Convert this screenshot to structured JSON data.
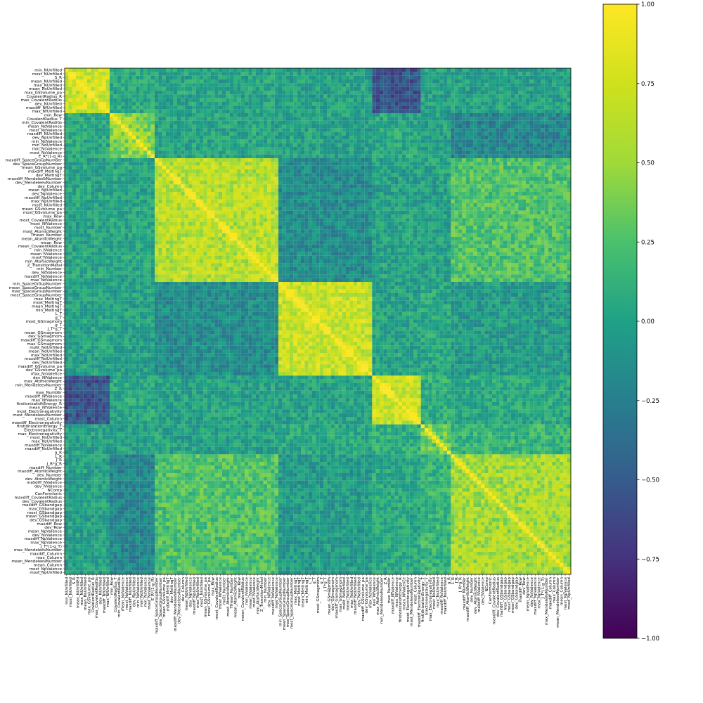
{
  "chart_data": {
    "type": "heatmap",
    "title": "",
    "xlabel": "",
    "ylabel": "",
    "colormap": "viridis",
    "vmin": -1.0,
    "vmax": 1.0,
    "colorbar": {
      "ticks": [
        1.0,
        0.75,
        0.5,
        0.25,
        0.0,
        -0.25,
        -0.5,
        -0.75,
        -1.0
      ],
      "tick_labels": [
        "1.00",
        "0.75",
        "0.50",
        "0.25",
        "0.00",
        "−0.25",
        "−0.50",
        "−0.75",
        "−1.00"
      ]
    },
    "labels": [
      "min_NUnfilled",
      "most_NUnfilled",
      "S_R",
      "mean_NUnfilled",
      "max_NUnfilled",
      "mean_NsUnfilled",
      "max_GSvolume_pa",
      "CovalentRadius_R",
      "max_CovalentRadius",
      "dev_NUnfilled",
      "maxdiff_NfUnfilled",
      "max_NfUnfilled",
      "min_Row",
      "CovalentRadius_T",
      "min_CovalentRadius",
      "mean_NdValence",
      "most_NdValence",
      "maxdiff_NUnfilled",
      "dev_NpUnfilled",
      "min_NdValence",
      "min_NdUnfilled",
      "min_NsValence",
      "most_NsValence",
      "E_R*(1-g_R)",
      "maxdiff_SpaceGroupNumber",
      "dev_SpaceGroupNumber",
      "mean_GSvolume_pa",
      "maxdiff_MeltingT",
      "dev_MeltingT",
      "maxdiff_MendeleevNumber",
      "dev_MendeleevNumber",
      "dev_Column",
      "mean_NpUnfilled",
      "dev_NpValence",
      "maxdiff_NpUnfilled",
      "max_NpUnfilled",
      "most_NUnfilled",
      "mean_GSvolume_pa",
      "most_GSvolume_pa",
      "max_Row",
      "most_CovalentRadius",
      "most_NfValence",
      "most_Number",
      "most_AtomicWeight",
      "Tmean_Number",
      "mean_AtomicWeight",
      "mean_Row",
      "mean_CovalentRadius",
      "min_NValence",
      "mean_NValence",
      "most_NValence",
      "min_AtomicWeight",
      "Z_TransitionMetal",
      "min_Number",
      "dev_NdValence",
      "maxdiff_NdValence",
      "max_NdValence",
      "min_SpaceGroupNumber",
      "mean_SpaceGroupNumber",
      "max_SpaceGroupNumber",
      "most_SpaceGroupNumber",
      "max_MeltingT",
      "most_MeltingT",
      "mean_MeltingT",
      "min_MeltingT",
      "L_T",
      "g_T",
      "most_GSmagmom",
      "g_T",
      "J_T*g_T",
      "mean_GSmagmom",
      "dev_GSmagmom",
      "maxdiff_GSmagmom",
      "max_GSmagmom",
      "most_NdUnfilled",
      "mean_NdUnfilled",
      "max_NdUnfilled",
      "maxdiff_NdUnfilled",
      "dev_NdUnfilled",
      "maxdiff_GSvolume_pa",
      "dev_GSvolume_pa",
      "max_NsValence",
      "dev_NfValence",
      "max_AtomicWeight",
      "min_MendeleevNumber",
      "Z_R",
      "max_Number",
      "maxdiff_NfValence",
      "max_NfValence",
      "firstIonizationEnergy_R",
      "mean_NfValence",
      "most_Electronegativity",
      "most_MendeleevNumber",
      "most_Column",
      "maxdiff_Electronegativity",
      "firstIonizationEnergy_T",
      "Electronegativity_T",
      "max_Electronegativity",
      "most_NsUnfilled",
      "max_NsUnfilled",
      "maxdiff_NsValence",
      "maxdiff_NsUnfilled",
      "g_R",
      "L_R",
      "J_R",
      "J_R*g_R",
      "maxdiff_Number",
      "maxdiff_AtomicWeight",
      "dev_Number",
      "dev_AtomicWeight",
      "maxdiff_NValence",
      "dev_NValence",
      "NComp",
      "CanFormIonic",
      "maxdiff_CovalentRadius",
      "dev_CovalentRadius",
      "maxdiff_GSbandgap",
      "max_GSbandgap",
      "most_GSbandgap",
      "mean_GSbandgap",
      "dev_GSbandgap",
      "maxdiff_Row",
      "dev_Row",
      "mean_NpValence",
      "dev_NsValence",
      "maxdiff_NpValence",
      "max_NpValence",
      "J_T*(1-g_T)",
      "max_MendeleevNumber",
      "maxdiff_Column",
      "max_Column",
      "mean_MendeleevNumber",
      "mean_Column",
      "most_NpValence",
      "most_NpUnfilled"
    ],
    "block_ranges": [
      [
        0,
        11
      ],
      [
        12,
        23
      ],
      [
        24,
        56
      ],
      [
        57,
        81
      ],
      [
        82,
        94
      ],
      [
        95,
        102
      ],
      [
        103,
        136
      ]
    ],
    "block_mean_correlation": [
      [
        0.72,
        0.05,
        0.02,
        0.0,
        -0.55,
        0.0,
        0.0
      ],
      [
        0.05,
        0.45,
        0.02,
        0.0,
        0.05,
        0.0,
        -0.2
      ],
      [
        0.02,
        0.02,
        0.62,
        -0.15,
        0.0,
        0.0,
        0.25
      ],
      [
        0.0,
        0.0,
        -0.15,
        0.7,
        0.0,
        0.05,
        -0.05
      ],
      [
        -0.55,
        0.05,
        0.0,
        0.0,
        0.7,
        0.1,
        0.05
      ],
      [
        0.0,
        0.0,
        0.0,
        0.05,
        0.1,
        0.35,
        0.15
      ],
      [
        0.0,
        -0.2,
        0.25,
        -0.05,
        0.05,
        0.15,
        0.55
      ]
    ]
  }
}
